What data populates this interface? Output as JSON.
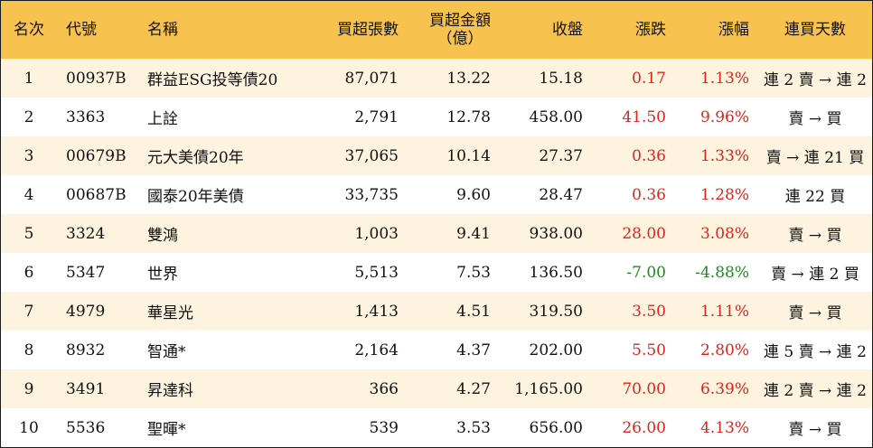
{
  "header": {
    "rank": "名次",
    "code": "代號",
    "name": "名稱",
    "net_buy_lots": "買超張數",
    "net_buy_amount_line1": "買超金額",
    "net_buy_amount_line2": "（億）",
    "close": "收盤",
    "change": "漲跌",
    "change_pct": "漲幅",
    "buy_days": "連買天數"
  },
  "rows": [
    {
      "rank": "1",
      "code": "00937B",
      "name": "群益ESG投等債20",
      "lots": "87,071",
      "amount": "13.22",
      "close": "15.18",
      "change": "0.17",
      "pct": "1.13%",
      "dir": "up",
      "days": "連 2 賣 → 連 2 買"
    },
    {
      "rank": "2",
      "code": "3363",
      "name": "上詮",
      "lots": "2,791",
      "amount": "12.78",
      "close": "458.00",
      "change": "41.50",
      "pct": "9.96%",
      "dir": "up",
      "days": "賣 → 買"
    },
    {
      "rank": "3",
      "code": "00679B",
      "name": "元大美債20年",
      "lots": "37,065",
      "amount": "10.14",
      "close": "27.37",
      "change": "0.36",
      "pct": "1.33%",
      "dir": "up",
      "days": "賣 → 連 21 買"
    },
    {
      "rank": "4",
      "code": "00687B",
      "name": "國泰20年美債",
      "lots": "33,735",
      "amount": "9.60",
      "close": "28.47",
      "change": "0.36",
      "pct": "1.28%",
      "dir": "up",
      "days": "連 22 買"
    },
    {
      "rank": "5",
      "code": "3324",
      "name": "雙鴻",
      "lots": "1,003",
      "amount": "9.41",
      "close": "938.00",
      "change": "28.00",
      "pct": "3.08%",
      "dir": "up",
      "days": "賣 → 買"
    },
    {
      "rank": "6",
      "code": "5347",
      "name": "世界",
      "lots": "5,513",
      "amount": "7.53",
      "close": "136.50",
      "change": "-7.00",
      "pct": "-4.88%",
      "dir": "down",
      "days": "賣 → 連 2 買"
    },
    {
      "rank": "7",
      "code": "4979",
      "name": "華星光",
      "lots": "1,413",
      "amount": "4.51",
      "close": "319.50",
      "change": "3.50",
      "pct": "1.11%",
      "dir": "up",
      "days": "賣 → 買"
    },
    {
      "rank": "8",
      "code": "8932",
      "name": "智通*",
      "lots": "2,164",
      "amount": "4.37",
      "close": "202.00",
      "change": "5.50",
      "pct": "2.80%",
      "dir": "up",
      "days": "連 5 賣 → 連 2 買"
    },
    {
      "rank": "9",
      "code": "3491",
      "name": "昇達科",
      "lots": "366",
      "amount": "4.27",
      "close": "1,165.00",
      "change": "70.00",
      "pct": "6.39%",
      "dir": "up",
      "days": "連 2 賣 → 連 2 買"
    },
    {
      "rank": "10",
      "code": "5536",
      "name": "聖暉*",
      "lots": "539",
      "amount": "3.53",
      "close": "656.00",
      "change": "26.00",
      "pct": "4.13%",
      "dir": "up",
      "days": "賣 → 買"
    }
  ],
  "colors": {
    "header_bg": "#f8c24e",
    "odd_row_bg": "#fdf3df",
    "even_row_bg": "#ffffff",
    "up": "#e2231a",
    "down": "#1c8a1c"
  }
}
